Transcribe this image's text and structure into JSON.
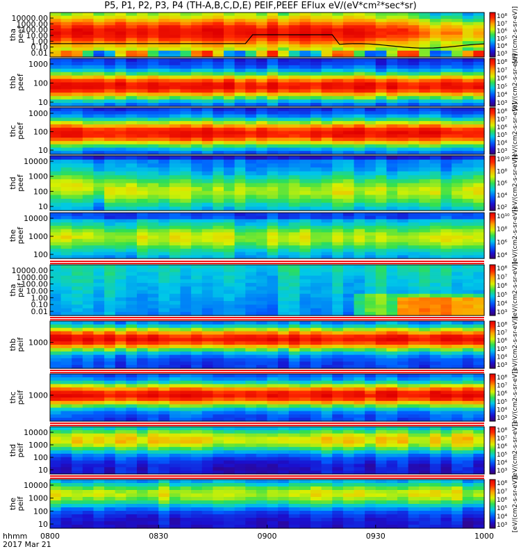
{
  "title": "P5, P1, P2, P3, P4 (TH-A,B,C,D,E) PEIF,PEEF EFlux eV/(eV*cm²*sec*sr)",
  "footer": {
    "xlabel": "hhmm",
    "date": "2017 Mar 21"
  },
  "colorbar_label": "[eV/(cm2-s-sr-eV)]",
  "chart_data": {
    "type": "heatmap",
    "x_ticks": [
      "0800",
      "0830",
      "0900",
      "0930",
      "1000"
    ],
    "panels": [
      {
        "id": "tha_peef",
        "ylabel": [
          "tha",
          "peef"
        ],
        "yticks": [
          "10000.00",
          "1000.00",
          "100.00",
          "10.00",
          "1.00",
          "0.10",
          "0.01"
        ],
        "cbar": [
          "10⁸",
          "10⁷",
          "10⁶",
          "10⁵",
          "10⁴",
          "10³"
        ]
      },
      {
        "id": "thb_peef",
        "ylabel": [
          "thb",
          "peef"
        ],
        "yticks": [
          "1000",
          "100",
          "10"
        ],
        "cbar": [
          "10⁸",
          "10⁷",
          "10⁶",
          "10⁵",
          "10⁴",
          "10³"
        ]
      },
      {
        "id": "thc_peef",
        "ylabel": [
          "thc",
          "peef"
        ],
        "yticks": [
          "1000",
          "100",
          "10"
        ],
        "cbar": [
          "10⁸",
          "10⁷",
          "10⁶",
          "10⁵",
          "10⁴",
          "10³"
        ]
      },
      {
        "id": "thd_peef",
        "ylabel": [
          "thd",
          "peef"
        ],
        "yticks": [
          "10000",
          "1000",
          "100",
          "10"
        ],
        "cbar": [
          "10¹⁰",
          "10⁸",
          "10⁶",
          "10⁴",
          "10²"
        ]
      },
      {
        "id": "the_peef",
        "ylabel": [
          "the",
          "peef"
        ],
        "yticks": [
          "10000",
          "1000",
          "100"
        ],
        "cbar": [
          "10¹⁰",
          "10⁸",
          "10⁶",
          "10⁴"
        ]
      },
      {
        "id": "tha_peif",
        "ylabel": [
          "tha",
          "peif"
        ],
        "yticks": [
          "10000.00",
          "1000.00",
          "100.00",
          "10.00",
          "1.00",
          "0.10",
          "0.01"
        ],
        "cbar": [
          "10⁸",
          "10⁷",
          "10⁶",
          "10⁵",
          "10⁴",
          "10³"
        ]
      },
      {
        "id": "thb_peif",
        "ylabel": [
          "thb",
          "peif"
        ],
        "yticks": [
          "1000"
        ],
        "cbar": [
          "10⁸",
          "10⁷",
          "10⁶",
          "10⁵",
          "10⁴",
          "10³"
        ]
      },
      {
        "id": "thc_peif",
        "ylabel": [
          "thc",
          "peif"
        ],
        "yticks": [
          "1000"
        ],
        "cbar": [
          "10⁸",
          "10⁷",
          "10⁶",
          "10⁵",
          "10⁴",
          "10³"
        ]
      },
      {
        "id": "thd_peif",
        "ylabel": [
          "thd",
          "peif"
        ],
        "yticks": [
          "10000",
          "1000",
          "100",
          "10"
        ],
        "cbar": [
          "10⁸",
          "10⁷",
          "10⁶",
          "10⁵",
          "10⁴",
          "10³"
        ]
      },
      {
        "id": "the_peif",
        "ylabel": [
          "the",
          "peif"
        ],
        "yticks": [
          "10000",
          "1000",
          "100",
          "10"
        ],
        "cbar": [
          "10⁸",
          "10⁷",
          "10⁶",
          "10⁵",
          "10⁴",
          "10³"
        ]
      }
    ]
  }
}
